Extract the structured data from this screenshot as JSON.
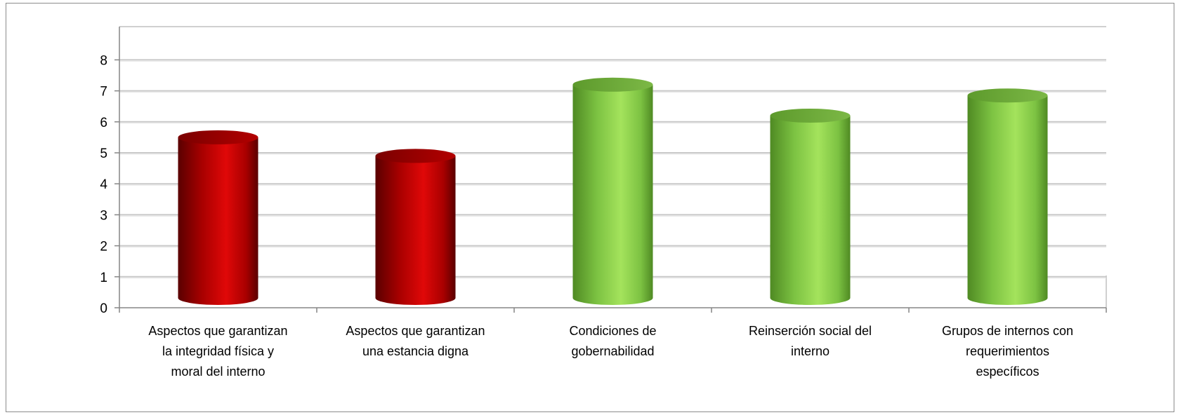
{
  "chart_data": {
    "type": "bar",
    "title": "",
    "xlabel": "",
    "ylabel": "",
    "ylim": [
      0,
      8
    ],
    "yticks": [
      "0",
      "1",
      "2",
      "3",
      "4",
      "5",
      "6",
      "7",
      "8"
    ],
    "grid": true,
    "legend": "none",
    "style": "cylinder",
    "categories": [
      [
        "Aspectos que garantizan",
        "la integridad física y",
        "moral del interno"
      ],
      [
        "Aspectos que garantizan",
        "una estancia digna"
      ],
      [
        "Condiciones de",
        "gobernabilidad"
      ],
      [
        "Reinserción social del",
        "interno"
      ],
      [
        "Grupos de internos con",
        "requerimientos",
        "específicos"
      ]
    ],
    "values": [
      5.5,
      4.9,
      7.2,
      6.2,
      6.85
    ],
    "colors": [
      "#c00000",
      "#c00000",
      "#92d050",
      "#92d050",
      "#92d050"
    ]
  }
}
